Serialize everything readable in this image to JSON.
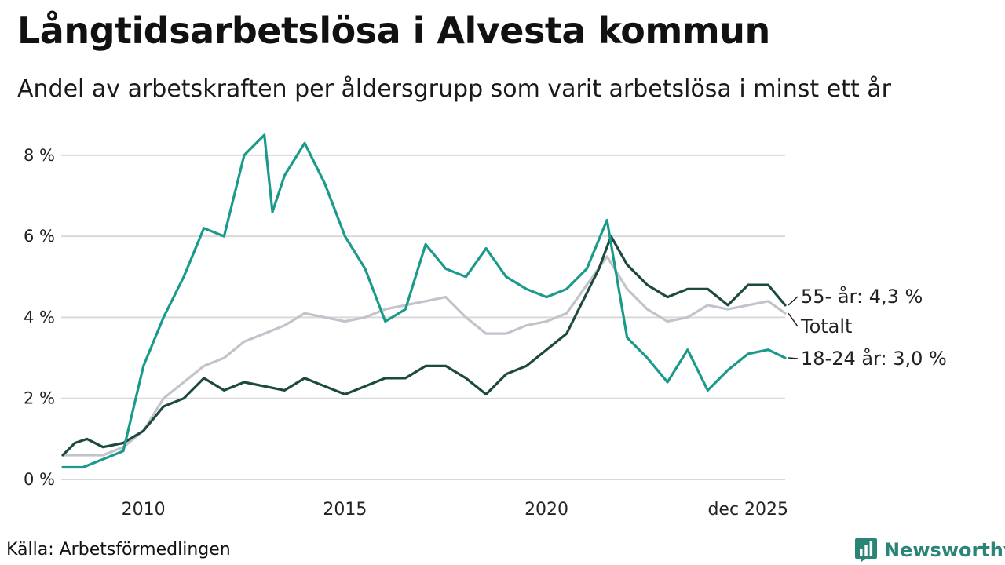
{
  "title": "Långtidsarbetslösa i Alvesta kommun",
  "subtitle": "Andel av arbetskraften per åldersgrupp som varit arbetslösa i minst ett år",
  "source": "Källa: Arbetsförmedlingen",
  "brand": "Newsworthy",
  "colors": {
    "youth": "#1a9a8a",
    "older": "#1d4a40",
    "total": "#c3c3cc",
    "grid": "#d9d9d9",
    "brand": "#2a8577"
  },
  "chart_data": {
    "type": "line",
    "title": "Långtidsarbetslösa i Alvesta kommun",
    "xlabel": "",
    "ylabel": "",
    "x_range": [
      2008.0,
      2025.92
    ],
    "ylim": [
      0,
      8.5
    ],
    "y_ticks": [
      0,
      2,
      4,
      6,
      8
    ],
    "y_tick_labels": [
      "0 %",
      "2 %",
      "4 %",
      "6 %",
      "8 %"
    ],
    "x_ticks": [
      2010,
      2015,
      2020,
      2025
    ],
    "x_tick_labels": [
      "2010",
      "2015",
      "2020",
      "dec 2025"
    ],
    "grid": true,
    "series": [
      {
        "key": "total",
        "name": "Totalt",
        "label": "Totalt",
        "color": "#c3c3cc",
        "points": [
          [
            2008.0,
            0.6
          ],
          [
            2008.5,
            0.6
          ],
          [
            2009.0,
            0.6
          ],
          [
            2009.5,
            0.8
          ],
          [
            2010.0,
            1.2
          ],
          [
            2010.5,
            2.0
          ],
          [
            2011.0,
            2.4
          ],
          [
            2011.5,
            2.8
          ],
          [
            2012.0,
            3.0
          ],
          [
            2012.5,
            3.4
          ],
          [
            2013.0,
            3.6
          ],
          [
            2013.5,
            3.8
          ],
          [
            2014.0,
            4.1
          ],
          [
            2014.5,
            4.0
          ],
          [
            2015.0,
            3.9
          ],
          [
            2015.5,
            4.0
          ],
          [
            2016.0,
            4.2
          ],
          [
            2016.5,
            4.3
          ],
          [
            2017.0,
            4.4
          ],
          [
            2017.5,
            4.5
          ],
          [
            2018.0,
            4.0
          ],
          [
            2018.5,
            3.6
          ],
          [
            2019.0,
            3.6
          ],
          [
            2019.5,
            3.8
          ],
          [
            2020.0,
            3.9
          ],
          [
            2020.5,
            4.1
          ],
          [
            2021.0,
            4.8
          ],
          [
            2021.5,
            5.5
          ],
          [
            2022.0,
            4.7
          ],
          [
            2022.5,
            4.2
          ],
          [
            2023.0,
            3.9
          ],
          [
            2023.5,
            4.0
          ],
          [
            2024.0,
            4.3
          ],
          [
            2024.5,
            4.2
          ],
          [
            2025.0,
            4.3
          ],
          [
            2025.5,
            4.4
          ],
          [
            2025.92,
            4.1
          ]
        ]
      },
      {
        "key": "older",
        "name": "55- år",
        "label": "55- år: 4,3 %",
        "last_value": 4.3,
        "color": "#1d4a40",
        "points": [
          [
            2008.0,
            0.6
          ],
          [
            2008.3,
            0.9
          ],
          [
            2008.6,
            1.0
          ],
          [
            2009.0,
            0.8
          ],
          [
            2009.5,
            0.9
          ],
          [
            2010.0,
            1.2
          ],
          [
            2010.5,
            1.8
          ],
          [
            2011.0,
            2.0
          ],
          [
            2011.5,
            2.5
          ],
          [
            2012.0,
            2.2
          ],
          [
            2012.5,
            2.4
          ],
          [
            2013.0,
            2.3
          ],
          [
            2013.5,
            2.2
          ],
          [
            2014.0,
            2.5
          ],
          [
            2014.5,
            2.3
          ],
          [
            2015.0,
            2.1
          ],
          [
            2015.5,
            2.3
          ],
          [
            2016.0,
            2.5
          ],
          [
            2016.5,
            2.5
          ],
          [
            2017.0,
            2.8
          ],
          [
            2017.5,
            2.8
          ],
          [
            2018.0,
            2.5
          ],
          [
            2018.5,
            2.1
          ],
          [
            2019.0,
            2.6
          ],
          [
            2019.5,
            2.8
          ],
          [
            2020.0,
            3.2
          ],
          [
            2020.5,
            3.6
          ],
          [
            2021.0,
            4.6
          ],
          [
            2021.3,
            5.2
          ],
          [
            2021.6,
            6.0
          ],
          [
            2022.0,
            5.3
          ],
          [
            2022.5,
            4.8
          ],
          [
            2023.0,
            4.5
          ],
          [
            2023.5,
            4.7
          ],
          [
            2024.0,
            4.7
          ],
          [
            2024.5,
            4.3
          ],
          [
            2025.0,
            4.8
          ],
          [
            2025.5,
            4.8
          ],
          [
            2025.92,
            4.3
          ]
        ]
      },
      {
        "key": "youth",
        "name": "18-24 år",
        "label": "18-24 år: 3,0 %",
        "last_value": 3.0,
        "color": "#1a9a8a",
        "points": [
          [
            2008.0,
            0.3
          ],
          [
            2008.5,
            0.3
          ],
          [
            2009.0,
            0.5
          ],
          [
            2009.5,
            0.7
          ],
          [
            2010.0,
            2.8
          ],
          [
            2010.5,
            4.0
          ],
          [
            2011.0,
            5.0
          ],
          [
            2011.5,
            6.2
          ],
          [
            2012.0,
            6.0
          ],
          [
            2012.5,
            8.0
          ],
          [
            2013.0,
            8.5
          ],
          [
            2013.2,
            6.6
          ],
          [
            2013.5,
            7.5
          ],
          [
            2014.0,
            8.3
          ],
          [
            2014.5,
            7.3
          ],
          [
            2015.0,
            6.0
          ],
          [
            2015.5,
            5.2
          ],
          [
            2016.0,
            3.9
          ],
          [
            2016.5,
            4.2
          ],
          [
            2017.0,
            5.8
          ],
          [
            2017.5,
            5.2
          ],
          [
            2018.0,
            5.0
          ],
          [
            2018.5,
            5.7
          ],
          [
            2019.0,
            5.0
          ],
          [
            2019.5,
            4.7
          ],
          [
            2020.0,
            4.5
          ],
          [
            2020.5,
            4.7
          ],
          [
            2021.0,
            5.2
          ],
          [
            2021.5,
            6.4
          ],
          [
            2022.0,
            3.5
          ],
          [
            2022.5,
            3.0
          ],
          [
            2023.0,
            2.4
          ],
          [
            2023.5,
            3.2
          ],
          [
            2024.0,
            2.2
          ],
          [
            2024.5,
            2.7
          ],
          [
            2025.0,
            3.1
          ],
          [
            2025.5,
            3.2
          ],
          [
            2025.92,
            3.0
          ]
        ]
      }
    ],
    "annotations": [
      "55- år: 4,3 %",
      "Totalt",
      "18-24 år: 3,0 %"
    ]
  }
}
